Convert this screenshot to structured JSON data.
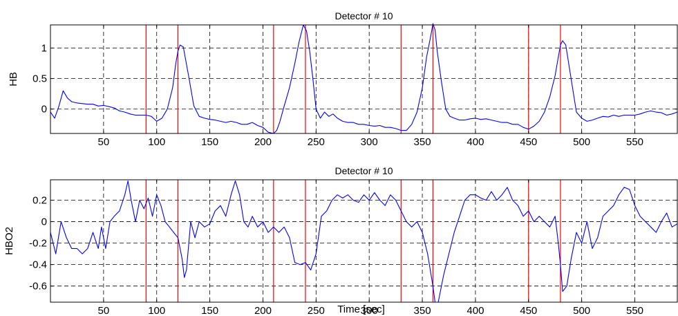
{
  "chart_data": [
    {
      "type": "line",
      "title": "Detector # 10",
      "xlabel": "",
      "ylabel": "HB",
      "xlim": [
        0,
        590
      ],
      "ylim": [
        -0.4,
        1.38
      ],
      "grid": true,
      "xticks": [
        50,
        100,
        150,
        200,
        250,
        300,
        350,
        400,
        450,
        500,
        550
      ],
      "yticks": [
        0,
        0.5,
        1
      ],
      "ytick_labels": [
        "0",
        "0.5",
        "1"
      ],
      "series_color": "#0000ff",
      "marker_color": "#ff0000",
      "event_markers": [
        90,
        120,
        210,
        240,
        330,
        360,
        450,
        480
      ],
      "x": [
        0,
        4,
        8,
        12,
        16,
        20,
        25,
        30,
        35,
        40,
        45,
        50,
        55,
        60,
        65,
        70,
        75,
        80,
        85,
        90,
        95,
        100,
        105,
        110,
        115,
        118,
        120,
        122,
        125,
        130,
        135,
        140,
        145,
        150,
        155,
        160,
        165,
        170,
        175,
        180,
        185,
        190,
        195,
        200,
        205,
        210,
        213,
        216,
        220,
        225,
        230,
        234,
        238,
        241,
        244,
        247,
        250,
        254,
        258,
        262,
        266,
        270,
        275,
        280,
        285,
        290,
        295,
        300,
        305,
        310,
        315,
        320,
        325,
        330,
        335,
        340,
        345,
        350,
        354,
        358,
        360,
        362,
        364,
        368,
        372,
        376,
        380,
        385,
        390,
        395,
        400,
        405,
        410,
        415,
        420,
        425,
        430,
        435,
        440,
        445,
        450,
        455,
        460,
        465,
        470,
        475,
        478,
        480,
        482,
        485,
        490,
        495,
        500,
        505,
        510,
        515,
        520,
        525,
        530,
        535,
        540,
        545,
        550,
        555,
        560,
        565,
        570,
        575,
        580,
        585,
        590
      ],
      "y": [
        -0.05,
        -0.15,
        0.05,
        0.3,
        0.18,
        0.12,
        0.1,
        0.09,
        0.08,
        0.08,
        0.05,
        0.06,
        0.04,
        0.02,
        -0.03,
        -0.05,
        -0.08,
        -0.1,
        -0.1,
        -0.1,
        -0.12,
        -0.2,
        -0.15,
        0.0,
        0.35,
        0.75,
        0.95,
        1.05,
        1.02,
        0.55,
        0.05,
        -0.12,
        -0.15,
        -0.17,
        -0.18,
        -0.2,
        -0.22,
        -0.2,
        -0.22,
        -0.25,
        -0.25,
        -0.22,
        -0.27,
        -0.3,
        -0.38,
        -0.4,
        -0.35,
        -0.2,
        0.05,
        0.35,
        0.75,
        1.1,
        1.38,
        1.28,
        0.95,
        0.5,
        0.0,
        -0.15,
        -0.05,
        -0.12,
        -0.08,
        -0.15,
        -0.2,
        -0.22,
        -0.22,
        -0.25,
        -0.25,
        -0.27,
        -0.28,
        -0.27,
        -0.3,
        -0.3,
        -0.32,
        -0.35,
        -0.35,
        -0.25,
        -0.05,
        0.35,
        0.85,
        1.2,
        1.4,
        1.3,
        0.95,
        0.45,
        0.0,
        -0.12,
        -0.15,
        -0.18,
        -0.18,
        -0.16,
        -0.15,
        -0.17,
        -0.16,
        -0.18,
        -0.2,
        -0.22,
        -0.22,
        -0.25,
        -0.25,
        -0.3,
        -0.33,
        -0.28,
        -0.2,
        -0.05,
        0.2,
        0.55,
        0.85,
        1.05,
        1.12,
        1.05,
        0.5,
        -0.05,
        -0.15,
        -0.2,
        -0.18,
        -0.15,
        -0.12,
        -0.13,
        -0.1,
        -0.12,
        -0.1,
        -0.1,
        -0.1,
        -0.08,
        -0.05,
        -0.03,
        -0.05,
        -0.06,
        -0.1,
        -0.08,
        -0.05
      ]
    },
    {
      "type": "line",
      "title": "Detector # 10",
      "xlabel": "Time [sec]",
      "ylabel": "HBO2",
      "xlim": [
        0,
        590
      ],
      "ylim": [
        -0.75,
        0.39
      ],
      "grid": true,
      "xticks": [
        50,
        100,
        150,
        200,
        250,
        300,
        350,
        400,
        450,
        500,
        550
      ],
      "yticks": [
        -0.6,
        -0.4,
        -0.2,
        0,
        0.2
      ],
      "ytick_labels": [
        "-0.6",
        "-0.4",
        "-0.2",
        "0",
        "0.2"
      ],
      "series_color": "#0000ff",
      "marker_color": "#ff0000",
      "event_markers": [
        90,
        120,
        210,
        240,
        330,
        360,
        450,
        480
      ],
      "x": [
        0,
        5,
        10,
        15,
        20,
        25,
        30,
        35,
        40,
        45,
        48,
        52,
        56,
        60,
        65,
        70,
        73,
        76,
        80,
        84,
        88,
        92,
        96,
        100,
        104,
        108,
        112,
        116,
        120,
        124,
        126,
        128,
        132,
        136,
        140,
        145,
        150,
        155,
        160,
        165,
        170,
        174,
        178,
        182,
        186,
        190,
        195,
        200,
        205,
        210,
        215,
        220,
        225,
        230,
        235,
        240,
        245,
        250,
        255,
        260,
        265,
        270,
        275,
        280,
        285,
        290,
        295,
        300,
        305,
        310,
        315,
        320,
        325,
        330,
        335,
        340,
        345,
        350,
        355,
        360,
        362,
        365,
        370,
        375,
        380,
        385,
        390,
        395,
        400,
        405,
        410,
        415,
        420,
        425,
        430,
        435,
        440,
        445,
        450,
        455,
        460,
        465,
        470,
        475,
        478,
        480,
        482,
        486,
        490,
        495,
        500,
        505,
        510,
        515,
        520,
        525,
        530,
        535,
        540,
        545,
        550,
        555,
        560,
        565,
        570,
        575,
        580,
        585,
        590
      ],
      "y": [
        -0.1,
        -0.3,
        0.0,
        -0.15,
        -0.25,
        -0.25,
        -0.3,
        -0.25,
        -0.1,
        -0.25,
        -0.05,
        -0.25,
        0.0,
        0.05,
        0.1,
        0.25,
        0.38,
        0.2,
        0.0,
        0.2,
        0.12,
        0.22,
        0.05,
        0.25,
        0.15,
        0.0,
        -0.05,
        -0.1,
        -0.15,
        -0.35,
        -0.52,
        -0.45,
        0.0,
        -0.15,
        0.0,
        -0.05,
        -0.02,
        0.1,
        0.15,
        0.05,
        0.25,
        0.38,
        0.25,
        0.0,
        -0.05,
        0.05,
        -0.05,
        0.0,
        -0.1,
        -0.05,
        -0.1,
        -0.05,
        -0.15,
        -0.38,
        -0.4,
        -0.38,
        -0.45,
        -0.3,
        0.05,
        0.1,
        0.2,
        0.25,
        0.22,
        0.25,
        0.2,
        0.18,
        0.25,
        0.2,
        0.27,
        0.2,
        0.15,
        0.25,
        0.2,
        0.1,
        0.0,
        -0.05,
        0.0,
        -0.1,
        -0.3,
        -0.6,
        -0.75,
        -0.75,
        -0.5,
        -0.3,
        -0.1,
        0.05,
        0.2,
        0.25,
        0.25,
        0.22,
        0.2,
        0.28,
        0.2,
        0.25,
        0.32,
        0.2,
        0.15,
        0.05,
        0.1,
        0.0,
        0.05,
        0.0,
        -0.05,
        0.05,
        -0.2,
        -0.4,
        -0.65,
        -0.6,
        -0.35,
        -0.1,
        -0.2,
        0.0,
        -0.25,
        -0.15,
        0.05,
        0.1,
        0.15,
        0.25,
        0.32,
        0.3,
        0.15,
        0.05,
        0.0,
        -0.05,
        -0.1,
        0.0,
        0.08,
        -0.05,
        -0.02
      ]
    }
  ]
}
